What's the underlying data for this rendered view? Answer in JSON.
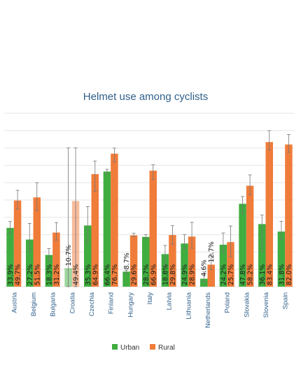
{
  "chart_data": {
    "type": "bar",
    "title": "Helmet use among cyclists",
    "xlabel": "",
    "ylabel": "",
    "ylim": [
      0,
      100
    ],
    "grid": true,
    "legend_position": "bottom",
    "categories": [
      "Austria",
      "Belgium",
      "Bulgaria",
      "Croatia",
      "Czechia",
      "Finland",
      "Hungary",
      "Italy",
      "Latvia",
      "Lithuania",
      "Netherlands",
      "Poland",
      "Slovakia",
      "Slovenia",
      "Spain"
    ],
    "series": [
      {
        "name": "Urban",
        "color": "#3fad3f",
        "values": [
          33.9,
          27.2,
          18.3,
          10.7,
          35.3,
          66.4,
          8.7,
          28.7,
          18.8,
          24.9,
          4.6,
          24.2,
          47.8,
          36.1,
          31.8
        ],
        "labels": [
          "33.9%",
          "27.2%",
          "18.3%",
          "10.7%",
          "35.3%",
          "66.4%",
          "8.7%",
          "28.7%",
          "18.8%",
          "24.9%",
          "4.6%",
          "24.2%",
          "47.8%",
          "36.1%",
          "31.8%"
        ],
        "error_low": [
          30.8,
          20.1,
          14.7,
          0.0,
          25.1,
          65.0,
          7.9,
          27.8,
          11.8,
          21.8,
          2.8,
          19.9,
          42.5,
          20.5,
          27.3
        ],
        "error_high": [
          37.6,
          36.5,
          22.0,
          80.0,
          46.2,
          67.7,
          9.5,
          30.0,
          23.8,
          30.0,
          8.5,
          31.0,
          52.0,
          41.4,
          37.7
        ]
      },
      {
        "name": "Rural",
        "color": "#f07c3a",
        "values": [
          49.7,
          51.5,
          31.2,
          49.4,
          64.9,
          76.7,
          29.6,
          66.9,
          29.8,
          28.9,
          12.7,
          25.7,
          58.2,
          83.4,
          82.0
        ],
        "labels": [
          "49.7%",
          "51.5%",
          "31.2%",
          "49.4%",
          "64.9%",
          "76.7%",
          "29.6%",
          "66.9%",
          "29.8%",
          "28.9%",
          "12.7%",
          "25.7%",
          "58.2%",
          "83.4%",
          "82.0%"
        ],
        "error_low": [
          44.8,
          44.0,
          26.9,
          0.0,
          55.0,
          72.0,
          28.9,
          62.0,
          24.5,
          22.2,
          9.9,
          17.3,
          53.0,
          78.8,
          77.5
        ],
        "error_high": [
          55.6,
          60.0,
          37.0,
          80.0,
          72.5,
          79.9,
          30.8,
          70.3,
          35.2,
          37.1,
          18.9,
          35.0,
          64.5,
          90.0,
          87.7
        ]
      }
    ]
  }
}
